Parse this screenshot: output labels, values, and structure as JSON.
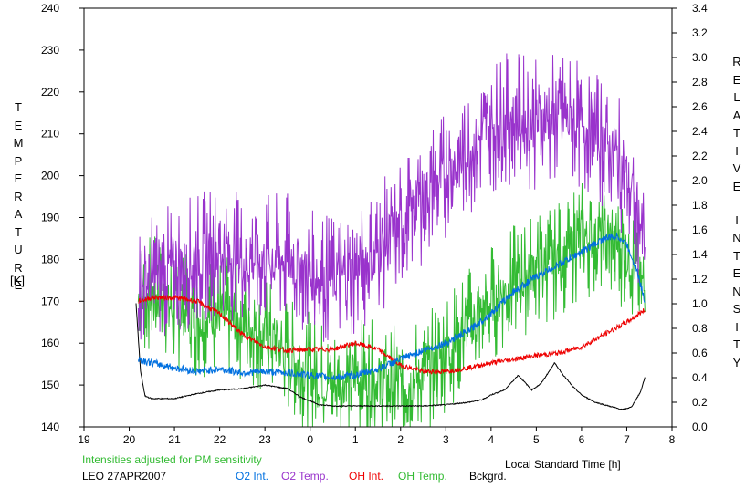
{
  "chart_data": {
    "type": "line",
    "left_axis_label": "TEMPERATURE",
    "left_axis_unit": "[K]",
    "right_axis_label": "RELATIVE INTENSITY",
    "xlabel": "Local Standard Time [h]",
    "xlim": [
      19,
      32
    ],
    "ylim_left": [
      140,
      240
    ],
    "ylim_right": [
      0.0,
      3.4
    ],
    "x_tick_labels": [
      "19",
      "20",
      "21",
      "22",
      "23",
      "0",
      "1",
      "2",
      "3",
      "4",
      "5",
      "6",
      "7",
      "8"
    ],
    "y_left_ticks": [
      140,
      150,
      160,
      170,
      180,
      190,
      200,
      210,
      220,
      230,
      240
    ],
    "y_right_ticks": [
      "0.0",
      "0.2",
      "0.4",
      "0.6",
      "0.8",
      "1.0",
      "1.2",
      "1.4",
      "1.6",
      "1.8",
      "2.0",
      "2.2",
      "2.4",
      "2.6",
      "2.8",
      "3.0",
      "3.2",
      "3.4"
    ],
    "grid": false,
    "legend_position": "bottom",
    "note": "Intensities adjusted for PM sensitivity",
    "station": "LEO 27APR2007",
    "series": [
      {
        "name": "O2 Int.",
        "color": "#0070e0",
        "axis": "right",
        "x": [
          20.2,
          20.5,
          21.0,
          21.5,
          22.0,
          22.5,
          23.0,
          23.5,
          24.0,
          24.5,
          25.0,
          25.5,
          26.0,
          26.5,
          27.0,
          27.5,
          28.0,
          28.5,
          29.0,
          29.5,
          30.0,
          30.5,
          30.8,
          31.0,
          31.2,
          31.4
        ],
        "values": [
          0.55,
          0.52,
          0.48,
          0.45,
          0.47,
          0.44,
          0.45,
          0.44,
          0.42,
          0.4,
          0.42,
          0.47,
          0.55,
          0.62,
          0.68,
          0.78,
          0.92,
          1.1,
          1.22,
          1.32,
          1.42,
          1.53,
          1.55,
          1.48,
          1.3,
          1.02
        ],
        "noise": 0.03
      },
      {
        "name": "O2 Temp.",
        "color": "#9933cc",
        "axis": "left",
        "x": [
          20.2,
          20.5,
          21.0,
          21.5,
          22.0,
          22.5,
          23.0,
          23.5,
          24.0,
          24.5,
          25.0,
          25.5,
          26.0,
          26.5,
          27.0,
          27.5,
          28.0,
          28.5,
          29.0,
          29.5,
          30.0,
          30.5,
          31.0,
          31.2,
          31.4
        ],
        "values": [
          173,
          175,
          178,
          180,
          182,
          180,
          180,
          180,
          176,
          175,
          177,
          182,
          188,
          195,
          200,
          206,
          212,
          214,
          212,
          214,
          212,
          208,
          200,
          192,
          185
        ],
        "noise": 10
      },
      {
        "name": "OH Int.",
        "color": "#ee0000",
        "axis": "right",
        "x": [
          20.2,
          20.5,
          21.0,
          21.5,
          22.0,
          22.5,
          23.0,
          23.5,
          24.0,
          24.5,
          25.0,
          25.5,
          26.0,
          26.5,
          27.0,
          27.5,
          28.0,
          28.5,
          29.0,
          29.5,
          30.0,
          30.5,
          31.0,
          31.4
        ],
        "values": [
          1.02,
          1.05,
          1.05,
          1.02,
          0.92,
          0.75,
          0.65,
          0.62,
          0.63,
          0.63,
          0.68,
          0.63,
          0.5,
          0.45,
          0.45,
          0.48,
          0.52,
          0.55,
          0.58,
          0.6,
          0.65,
          0.75,
          0.85,
          0.95
        ],
        "noise": 0.02
      },
      {
        "name": "OH Temp.",
        "color": "#33bb33",
        "axis": "left",
        "x": [
          20.2,
          20.5,
          21.0,
          21.5,
          22.0,
          22.5,
          23.0,
          23.5,
          24.0,
          24.5,
          25.0,
          25.5,
          26.0,
          26.5,
          27.0,
          27.5,
          28.0,
          28.5,
          29.0,
          29.5,
          30.0,
          30.5,
          31.0,
          31.2,
          31.4
        ],
        "values": [
          170,
          172,
          168,
          166,
          167,
          165,
          162,
          157,
          153,
          150,
          152,
          151,
          150,
          152,
          158,
          164,
          170,
          174,
          178,
          180,
          185,
          185,
          182,
          178,
          172
        ],
        "noise": 9
      },
      {
        "name": "Bckgrd.",
        "color": "#000000",
        "axis": "right",
        "x": [
          20.15,
          20.25,
          20.35,
          20.5,
          21.0,
          21.5,
          22.0,
          22.5,
          23.0,
          23.5,
          23.8,
          24.2,
          24.5,
          25.0,
          25.5,
          26.0,
          26.5,
          27.0,
          27.5,
          27.8,
          28.0,
          28.3,
          28.6,
          28.8,
          28.9,
          29.1,
          29.3,
          29.4,
          29.6,
          29.8,
          30.0,
          30.3,
          30.6,
          30.9,
          31.1,
          31.3,
          31.4
        ],
        "values": [
          1.0,
          0.45,
          0.25,
          0.23,
          0.23,
          0.27,
          0.3,
          0.31,
          0.34,
          0.31,
          0.24,
          0.18,
          0.17,
          0.17,
          0.17,
          0.17,
          0.17,
          0.18,
          0.2,
          0.22,
          0.26,
          0.3,
          0.42,
          0.34,
          0.3,
          0.35,
          0.46,
          0.52,
          0.42,
          0.33,
          0.26,
          0.2,
          0.17,
          0.14,
          0.16,
          0.28,
          0.4
        ],
        "noise": 0.004
      }
    ]
  }
}
